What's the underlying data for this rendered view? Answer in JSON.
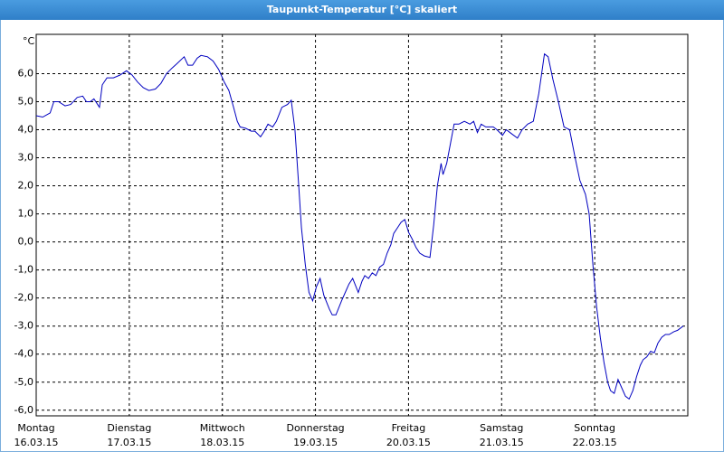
{
  "window_title": "Taupunkt-Temperatur [°C] skaliert",
  "chart_data": {
    "type": "line",
    "unit_label": "°C",
    "xlim": [
      0,
      7
    ],
    "xticks": [
      0,
      1,
      2,
      3,
      4,
      5,
      6
    ],
    "xtick_days": [
      "Montag",
      "Dienstag",
      "Mittwoch",
      "Donnerstag",
      "Freitag",
      "Samstag",
      "Sonntag"
    ],
    "xtick_dates": [
      "16.03.15",
      "17.03.15",
      "18.03.15",
      "19.03.15",
      "20.03.15",
      "21.03.15",
      "22.03.15"
    ],
    "ylim": [
      -6.2,
      7.4
    ],
    "yticks": [
      {
        "value": 6,
        "label": "6,0"
      },
      {
        "value": 5,
        "label": "5,0"
      },
      {
        "value": 4,
        "label": "4,0"
      },
      {
        "value": 3,
        "label": "3,0"
      },
      {
        "value": 2,
        "label": "2,0"
      },
      {
        "value": 1,
        "label": "1,0"
      },
      {
        "value": 0,
        "label": "0,0"
      },
      {
        "value": -1,
        "label": "-1,0"
      },
      {
        "value": -2,
        "label": "-2,0"
      },
      {
        "value": -3,
        "label": "-3,0"
      },
      {
        "value": -4,
        "label": "-4,0"
      },
      {
        "value": -5,
        "label": "-5,0"
      },
      {
        "value": -6,
        "label": "-6,0"
      }
    ],
    "grid": true,
    "color": "#0000c0",
    "x": [
      0,
      0.07,
      0.15,
      0.19,
      0.24,
      0.31,
      0.37,
      0.44,
      0.5,
      0.54,
      0.58,
      0.62,
      0.68,
      0.71,
      0.76,
      0.83,
      0.9,
      0.97,
      1.03,
      1.09,
      1.15,
      1.21,
      1.28,
      1.34,
      1.4,
      1.46,
      1.51,
      1.59,
      1.63,
      1.68,
      1.73,
      1.77,
      1.84,
      1.9,
      1.96,
      2.02,
      2.07,
      2.12,
      2.16,
      2.19,
      2.25,
      2.31,
      2.35,
      2.41,
      2.45,
      2.49,
      2.54,
      2.58,
      2.64,
      2.7,
      2.74,
      2.78,
      2.82,
      2.85,
      2.89,
      2.93,
      2.97,
      3.01,
      3.05,
      3.09,
      3.15,
      3.18,
      3.22,
      3.28,
      3.32,
      3.36,
      3.4,
      3.46,
      3.5,
      3.53,
      3.57,
      3.61,
      3.65,
      3.69,
      3.73,
      3.77,
      3.81,
      3.84,
      3.88,
      3.92,
      3.96,
      4.0,
      4.04,
      4.08,
      4.12,
      4.17,
      4.23,
      4.27,
      4.31,
      4.35,
      4.37,
      4.41,
      4.45,
      4.49,
      4.54,
      4.6,
      4.66,
      4.7,
      4.74,
      4.78,
      4.83,
      4.91,
      4.95,
      5.01,
      5.05,
      5.11,
      5.17,
      5.22,
      5.28,
      5.34,
      5.4,
      5.46,
      5.5,
      5.55,
      5.61,
      5.67,
      5.73,
      5.79,
      5.84,
      5.9,
      5.94,
      5.98,
      6.02,
      6.06,
      6.1,
      6.14,
      6.17,
      6.21,
      6.25,
      6.29,
      6.33,
      6.37,
      6.41,
      6.45,
      6.49,
      6.52,
      6.56,
      6.6,
      6.64,
      6.68,
      6.72,
      6.76,
      6.8,
      6.85,
      6.89,
      6.95
    ],
    "values": [
      4.5,
      4.45,
      4.6,
      5.0,
      5.0,
      4.85,
      4.9,
      5.15,
      5.2,
      5.0,
      5.0,
      5.1,
      4.8,
      5.6,
      5.85,
      5.85,
      5.95,
      6.1,
      5.95,
      5.7,
      5.5,
      5.4,
      5.45,
      5.65,
      6.0,
      6.2,
      6.35,
      6.6,
      6.3,
      6.3,
      6.55,
      6.65,
      6.6,
      6.45,
      6.15,
      5.7,
      5.4,
      4.8,
      4.3,
      4.1,
      4.05,
      3.95,
      3.95,
      3.75,
      3.95,
      4.2,
      4.1,
      4.3,
      4.8,
      4.9,
      5.05,
      4.0,
      2.0,
      0.5,
      -0.8,
      -1.8,
      -2.1,
      -1.6,
      -1.3,
      -1.9,
      -2.4,
      -2.6,
      -2.6,
      -2.1,
      -1.8,
      -1.5,
      -1.3,
      -1.8,
      -1.4,
      -1.2,
      -1.3,
      -1.1,
      -1.2,
      -0.9,
      -0.8,
      -0.4,
      -0.1,
      0.3,
      0.5,
      0.7,
      0.8,
      0.35,
      0.1,
      -0.2,
      -0.4,
      -0.5,
      -0.55,
      0.6,
      2.0,
      2.8,
      2.4,
      2.8,
      3.5,
      4.2,
      4.2,
      4.3,
      4.2,
      4.3,
      3.9,
      4.2,
      4.1,
      4.1,
      4.0,
      3.8,
      4.0,
      3.85,
      3.7,
      4.0,
      4.2,
      4.3,
      5.3,
      6.7,
      6.6,
      5.8,
      5.0,
      4.1,
      4.0,
      3.0,
      2.2,
      1.7,
      1.0,
      -0.8,
      -2.3,
      -3.4,
      -4.3,
      -5.0,
      -5.3,
      -5.4,
      -4.9,
      -5.2,
      -5.5,
      -5.6,
      -5.3,
      -4.8,
      -4.4,
      -4.2,
      -4.1,
      -3.9,
      -3.95,
      -3.6,
      -3.4,
      -3.3,
      -3.3,
      -3.2,
      -3.15,
      -3.0
    ]
  }
}
